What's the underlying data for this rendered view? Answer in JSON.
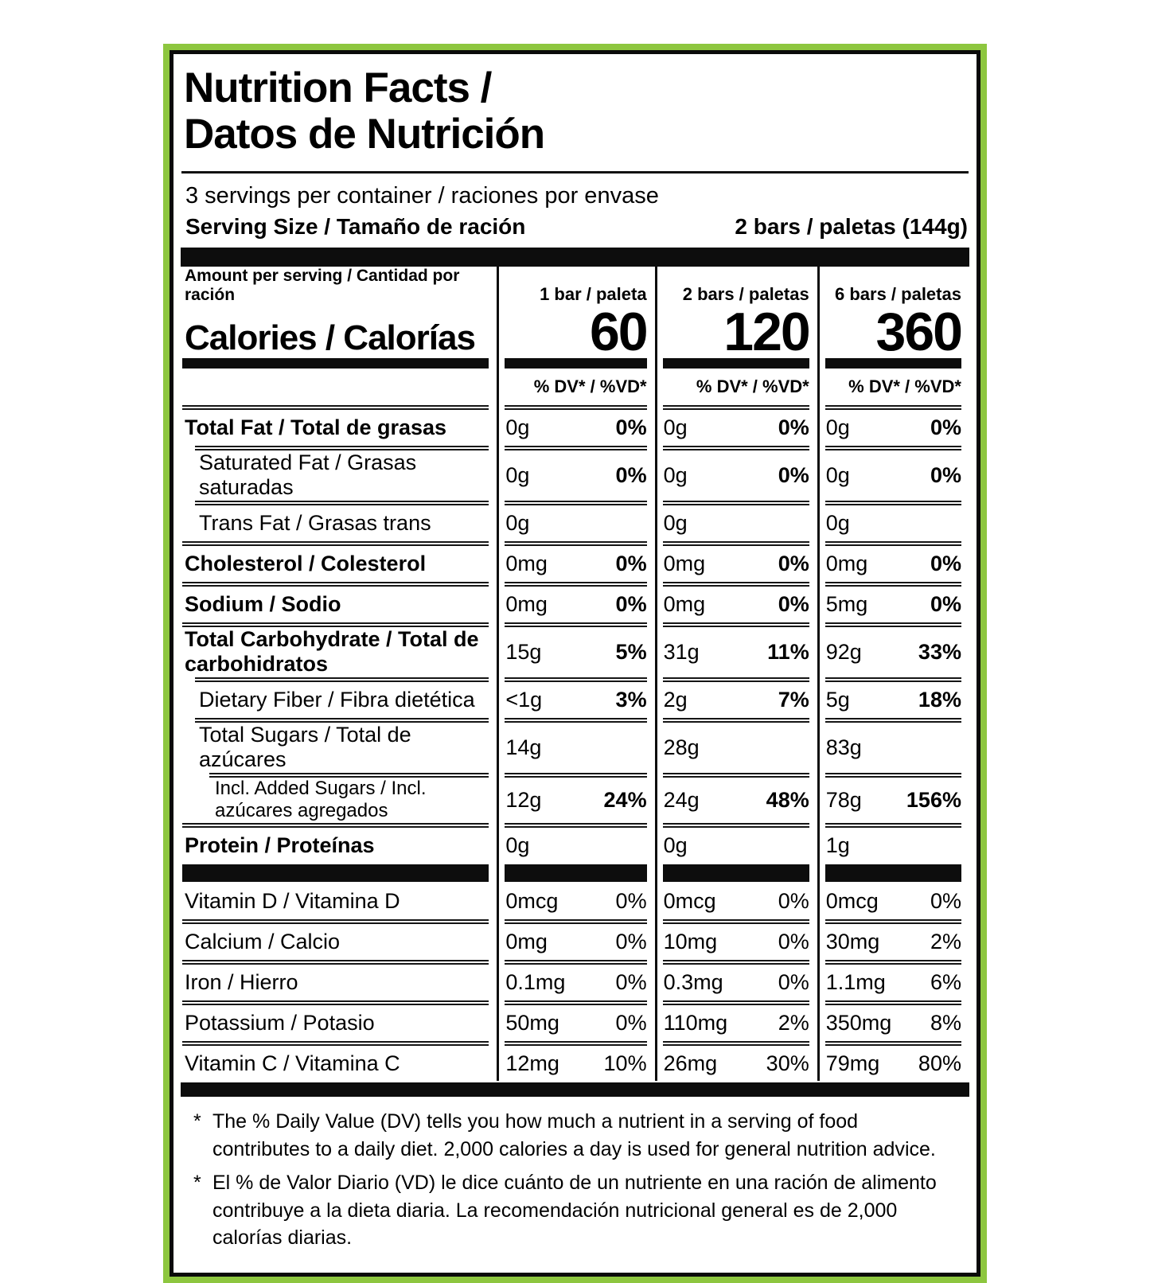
{
  "colors": {
    "border_green": "#8DC63F",
    "bar_black": "#0d0d0d"
  },
  "header": {
    "title_line1": "Nutrition Facts /",
    "title_line2": "Datos de Nutrición",
    "servings_line": "3 servings per container / raciones por envase",
    "serving_size_label": "Serving Size / Tamaño de ración",
    "serving_size_value": "2 bars / paletas (144g)"
  },
  "calories": {
    "amount_per_serving": "Amount per serving / Cantidad por ración",
    "label": "Calories / Calorías",
    "dv_header": "% DV* / %VD*",
    "columns": [
      {
        "header": "1 bar / paleta",
        "value": "60"
      },
      {
        "header": "2 bars / paletas",
        "value": "120"
      },
      {
        "header": "6 bars / paletas",
        "value": "360"
      }
    ]
  },
  "nutrients": [
    {
      "label": "Total Fat / Total de grasas",
      "cells": [
        {
          "amt": "0g",
          "dv": "0%"
        },
        {
          "amt": "0g",
          "dv": "0%"
        },
        {
          "amt": "0g",
          "dv": "0%"
        }
      ]
    },
    {
      "label": "Saturated Fat / Grasas saturadas",
      "cells": [
        {
          "amt": "0g",
          "dv": "0%"
        },
        {
          "amt": "0g",
          "dv": "0%"
        },
        {
          "amt": "0g",
          "dv": "0%"
        }
      ]
    },
    {
      "label": "Trans Fat / Grasas trans",
      "cells": [
        {
          "amt": "0g",
          "dv": ""
        },
        {
          "amt": "0g",
          "dv": ""
        },
        {
          "amt": "0g",
          "dv": ""
        }
      ]
    },
    {
      "label": "Cholesterol / Colesterol",
      "cells": [
        {
          "amt": "0mg",
          "dv": "0%"
        },
        {
          "amt": "0mg",
          "dv": "0%"
        },
        {
          "amt": "0mg",
          "dv": "0%"
        }
      ]
    },
    {
      "label": "Sodium / Sodio",
      "cells": [
        {
          "amt": "0mg",
          "dv": "0%"
        },
        {
          "amt": "0mg",
          "dv": "0%"
        },
        {
          "amt": "5mg",
          "dv": "0%"
        }
      ]
    },
    {
      "label": "Total Carbohydrate / Total de carbohidratos",
      "cells": [
        {
          "amt": "15g",
          "dv": "5%"
        },
        {
          "amt": "31g",
          "dv": "11%"
        },
        {
          "amt": "92g",
          "dv": "33%"
        }
      ]
    },
    {
      "label": "Dietary Fiber / Fibra dietética",
      "cells": [
        {
          "amt": "<1g",
          "dv": "3%"
        },
        {
          "amt": "2g",
          "dv": "7%"
        },
        {
          "amt": "5g",
          "dv": "18%"
        }
      ]
    },
    {
      "label": "Total Sugars / Total de azúcares",
      "cells": [
        {
          "amt": "14g",
          "dv": ""
        },
        {
          "amt": "28g",
          "dv": ""
        },
        {
          "amt": "83g",
          "dv": ""
        }
      ]
    },
    {
      "label": "Incl. Added Sugars / Incl. azúcares agregados",
      "cells": [
        {
          "amt": "12g",
          "dv": "24%"
        },
        {
          "amt": "24g",
          "dv": "48%"
        },
        {
          "amt": "78g",
          "dv": "156%"
        }
      ]
    },
    {
      "label": "Protein / Proteínas",
      "cells": [
        {
          "amt": "0g",
          "dv": ""
        },
        {
          "amt": "0g",
          "dv": ""
        },
        {
          "amt": "1g",
          "dv": ""
        }
      ]
    }
  ],
  "vitamins": [
    {
      "label": "Vitamin D / Vitamina D",
      "cells": [
        {
          "amt": "0mcg",
          "dv": "0%"
        },
        {
          "amt": "0mcg",
          "dv": "0%"
        },
        {
          "amt": "0mcg",
          "dv": "0%"
        }
      ]
    },
    {
      "label": "Calcium / Calcio",
      "cells": [
        {
          "amt": "0mg",
          "dv": "0%"
        },
        {
          "amt": "10mg",
          "dv": "0%"
        },
        {
          "amt": "30mg",
          "dv": "2%"
        }
      ]
    },
    {
      "label": "Iron / Hierro",
      "cells": [
        {
          "amt": "0.1mg",
          "dv": "0%"
        },
        {
          "amt": "0.3mg",
          "dv": "0%"
        },
        {
          "amt": "1.1mg",
          "dv": "6%"
        }
      ]
    },
    {
      "label": "Potassium / Potasio",
      "cells": [
        {
          "amt": "50mg",
          "dv": "0%"
        },
        {
          "amt": "110mg",
          "dv": "2%"
        },
        {
          "amt": "350mg",
          "dv": "8%"
        }
      ]
    },
    {
      "label": "Vitamin C / Vitamina C",
      "cells": [
        {
          "amt": "12mg",
          "dv": "10%"
        },
        {
          "amt": "26mg",
          "dv": "30%"
        },
        {
          "amt": "79mg",
          "dv": "80%"
        }
      ]
    }
  ],
  "footnotes": [
    {
      "marker": "*",
      "text": "The % Daily Value (DV) tells you how much a nutrient in a serving of food contributes to a daily diet. 2,000 calories a day is used for general nutrition advice."
    },
    {
      "marker": "*",
      "text": "El % de Valor Diario (VD) le dice cuánto de un nutriente en una ración de alimento contribuye a la dieta diaria. La recomendación nutricional general es de 2,000 calorías diarias."
    }
  ]
}
